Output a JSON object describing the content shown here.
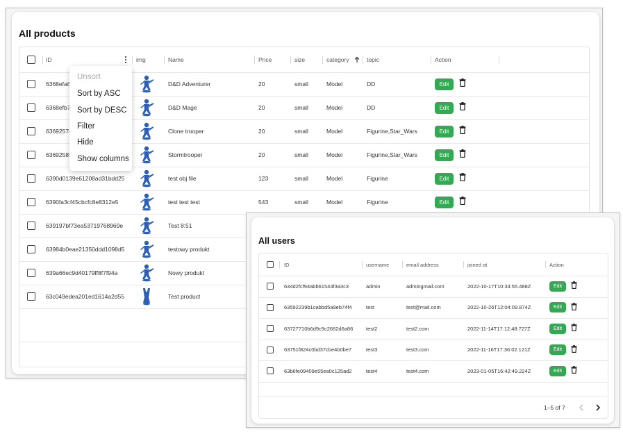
{
  "products": {
    "title": "All products",
    "columns": {
      "id": "ID",
      "img": "img",
      "name": "Name",
      "price": "Price",
      "size": "size",
      "category": "category",
      "topic": "topic",
      "action": "Action"
    },
    "sort_icon": "arrow-up-icon",
    "column_menu_icon": "kebab-icon",
    "rows": [
      {
        "id": "6368efa6",
        "name": "D&D Adventurer",
        "price": "20",
        "size": "small",
        "category": "Model",
        "topic": "DD"
      },
      {
        "id": "6368efb7",
        "name": "D&D Mage",
        "price": "20",
        "size": "small",
        "category": "Model",
        "topic": "DD"
      },
      {
        "id": "6369257e",
        "name": "Clone trooper",
        "price": "20",
        "size": "small",
        "category": "Model",
        "topic": "Figurine,Star_Wars"
      },
      {
        "id": "63692589",
        "name": "Stormtrooper",
        "price": "20",
        "size": "small",
        "category": "Model",
        "topic": "Figurine,Star_Wars"
      },
      {
        "id": "6390d0139e61208ad31bdd25",
        "name": "test obj file",
        "price": "123",
        "size": "small",
        "category": "Model",
        "topic": "Figurine"
      },
      {
        "id": "6390fa3cf45cbcfc8e8312e5",
        "name": "test test test",
        "price": "543",
        "size": "small",
        "category": "Model",
        "topic": "Figurine"
      },
      {
        "id": "639197bf73ea53719768969e",
        "name": "Test 8:51",
        "price": "",
        "size": "",
        "category": "",
        "topic": ""
      },
      {
        "id": "63984b0eae21350ddd1098d5",
        "name": "testowy produkt",
        "price": "",
        "size": "",
        "category": "",
        "topic": ""
      },
      {
        "id": "639a66ec9d40179ff8f7f94a",
        "name": "Nowy produkt",
        "price": "",
        "size": "",
        "category": "",
        "topic": ""
      },
      {
        "id": "63c049edea201ed1614a2d55",
        "name": "Test product",
        "price": "",
        "size": "",
        "category": "",
        "topic": ""
      }
    ],
    "edit_label": "Edit",
    "column_menu": {
      "items": [
        "Unsort",
        "Sort by ASC",
        "Sort by DESC",
        "Filter",
        "Hide",
        "Show columns"
      ]
    }
  },
  "users": {
    "title": "All users",
    "columns": {
      "id": "ID",
      "username": "username",
      "email": "email address",
      "joined": "joined at",
      "action": "Action"
    },
    "rows": [
      {
        "id": "634d2fcf94abb61544f3a3c3",
        "username": "admin",
        "email": "admingmail.com",
        "joined": "2022-10-17T10:34:55.488Z"
      },
      {
        "id": "63592239b1cabbd5a9eb74f4",
        "username": "test",
        "email": "test@mail.com",
        "joined": "2022-10-26T12:04:09.874Z"
      },
      {
        "id": "63727710b6d9c9c2662d6a86",
        "username": "test2",
        "email": "test2.com",
        "joined": "2022-11-14T17:12:48.727Z"
      },
      {
        "id": "63751f824c0bd37cbe4b0be7",
        "username": "test3",
        "email": "test3.com",
        "joined": "2022-11-16T17:36:02.121Z"
      },
      {
        "id": "63b6fe09409e55ea0c125ad2",
        "username": "test4",
        "email": "test4.com",
        "joined": "2023-01-05T16:42:49.224Z"
      }
    ],
    "edit_label": "Edit",
    "pagination": {
      "label": "1–5 of 7",
      "prev_icon": "chevron-left-icon",
      "next_icon": "chevron-right-icon"
    }
  },
  "colors": {
    "edit_button": "#34a853",
    "figurine": "#2e5fb4",
    "disabled_text": "#a9a9a9"
  }
}
